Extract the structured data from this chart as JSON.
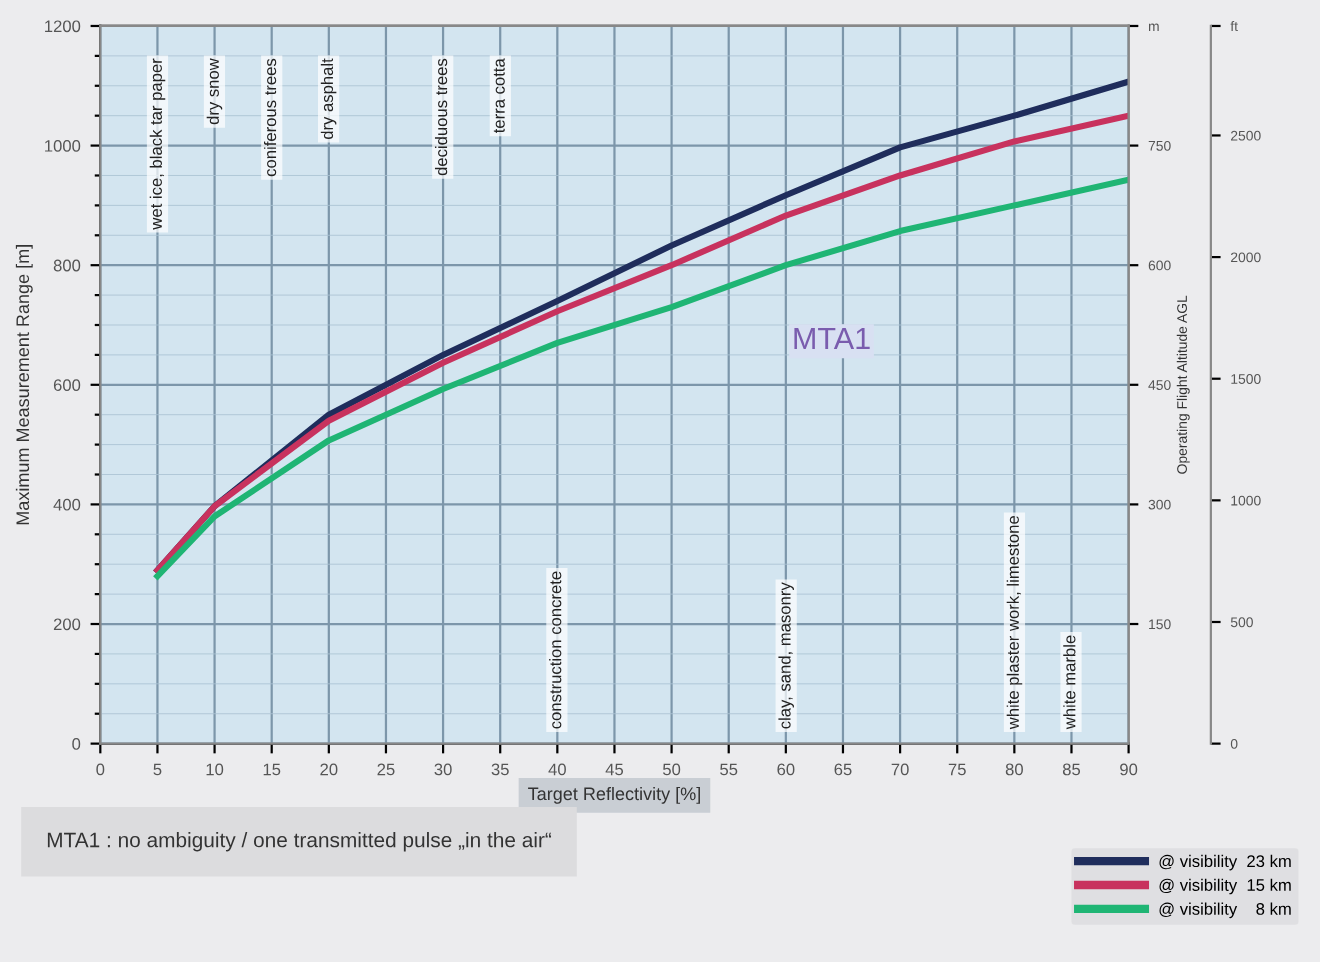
{
  "chart_data": {
    "type": "line",
    "xlabel": "Target Reflectivity [%]",
    "ylabel": "Maximum Measurement Range [m]",
    "y2label": "Operating Flight Altitude AGL",
    "x": [
      5,
      10,
      20,
      30,
      40,
      50,
      60,
      70,
      80,
      90
    ],
    "series": [
      {
        "name": "@ visibility  23 km",
        "color": "#1f2d5c",
        "values": [
          290,
          397,
          550,
          650,
          740,
          833,
          917,
          997,
          1050,
          1107
        ]
      },
      {
        "name": "@ visibility  15 km",
        "color": "#c8325e",
        "values": [
          290,
          397,
          540,
          637,
          723,
          800,
          883,
          950,
          1007,
          1050
        ]
      },
      {
        "name": "@ visibility    8 km",
        "color": "#1fb574",
        "values": [
          280,
          380,
          507,
          593,
          670,
          730,
          800,
          857,
          900,
          943
        ]
      }
    ],
    "xlim": [
      0,
      90
    ],
    "xticks": [
      0,
      5,
      10,
      15,
      20,
      25,
      30,
      35,
      40,
      45,
      50,
      55,
      60,
      65,
      70,
      75,
      80,
      85,
      90
    ],
    "ylim": [
      0,
      1200
    ],
    "yticks": [
      0,
      {
        "value": 50,
        "label": null
      },
      {
        "value": 100,
        "label": null
      },
      {
        "value": 150,
        "label": null
      },
      200,
      {
        "value": 250,
        "label": null
      },
      {
        "value": 300,
        "label": null
      },
      {
        "value": 350,
        "label": null
      },
      400,
      {
        "value": 450,
        "label": null
      },
      {
        "value": 500,
        "label": null
      },
      {
        "value": 550,
        "label": null
      },
      600,
      {
        "value": 650,
        "label": null
      },
      {
        "value": 700,
        "label": null
      },
      {
        "value": 750,
        "label": null
      },
      800,
      {
        "value": 850,
        "label": null
      },
      {
        "value": 900,
        "label": null
      },
      {
        "value": 950,
        "label": null
      },
      1000,
      {
        "value": 1050,
        "label": null
      },
      {
        "value": 1100,
        "label": null
      },
      {
        "value": 1150,
        "label": null
      },
      1200
    ],
    "y2lim": [
      0,
      900
    ],
    "y2ticks": [
      150,
      300,
      450,
      600,
      750,
      {
        "value": 900,
        "label": "m"
      }
    ],
    "y3lim": [
      0,
      2950
    ],
    "y3ticks": [
      0,
      500,
      1000,
      1500,
      2000,
      2500,
      {
        "value": 2950,
        "label": "ft"
      }
    ],
    "grid": true,
    "legend": "bottom right",
    "marker": "none",
    "line_style": "solid",
    "annotations": [
      {
        "text": "MTA1",
        "x": 64,
        "y": 673
      },
      "wet ice, black tar paper",
      "dry snow",
      "coniferous trees",
      "dry asphalt",
      "deciduous trees",
      "terra cotta",
      "construction concrete",
      "clay, sand, masonry",
      "white plaster work, limestone",
      "white marble",
      "MTA1 : no ambiguity / one transmitted pulse „in the air“"
    ]
  }
}
